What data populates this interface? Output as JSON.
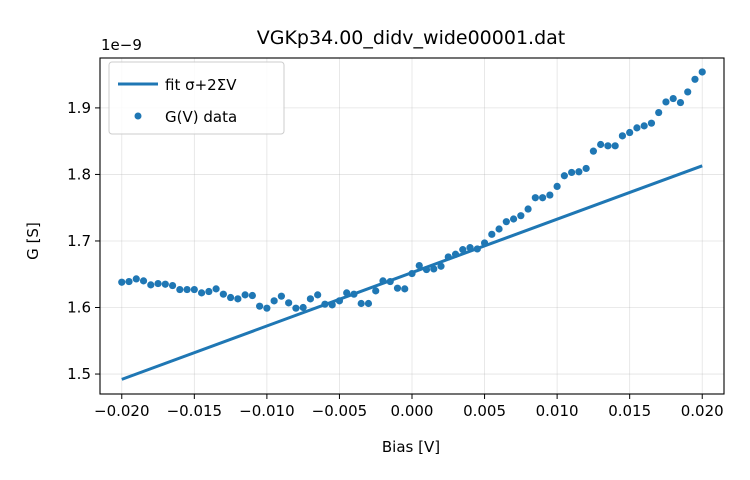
{
  "chart_data": {
    "type": "scatter",
    "title": "VGKp34.00_didv_wide00001.dat",
    "xlabel": "Bias [V]",
    "ylabel": "G [S]",
    "y_offset_label": "1e−9",
    "xlim": [
      -0.0215,
      0.0215
    ],
    "ylim": [
      1.47,
      1.975
    ],
    "grid": true,
    "legend_position": "top-left",
    "x_ticks": [
      -0.02,
      -0.015,
      -0.01,
      -0.005,
      0.0,
      0.005,
      0.01,
      0.015,
      0.02
    ],
    "x_tick_labels": [
      "−0.020",
      "−0.015",
      "−0.010",
      "−0.005",
      "0.000",
      "0.005",
      "0.010",
      "0.015",
      "0.020"
    ],
    "y_ticks": [
      1.5,
      1.6,
      1.7,
      1.8,
      1.9
    ],
    "y_tick_labels": [
      "1.5",
      "1.6",
      "1.7",
      "1.8",
      "1.9"
    ],
    "color": "#1f77b4",
    "series": [
      {
        "name": "fit σ+2ΣV",
        "kind": "line",
        "x": [
          -0.02,
          0.02
        ],
        "y": [
          1.492,
          1.813
        ]
      },
      {
        "name": "G(V) data",
        "kind": "scatter",
        "x": [
          -0.02,
          -0.0195,
          -0.019,
          -0.0185,
          -0.018,
          -0.0175,
          -0.017,
          -0.0165,
          -0.016,
          -0.0155,
          -0.015,
          -0.0145,
          -0.014,
          -0.0135,
          -0.013,
          -0.0125,
          -0.012,
          -0.0115,
          -0.011,
          -0.0105,
          -0.01,
          -0.0095,
          -0.009,
          -0.0085,
          -0.008,
          -0.0075,
          -0.007,
          -0.0065,
          -0.006,
          -0.0055,
          -0.005,
          -0.0045,
          -0.004,
          -0.0035,
          -0.003,
          -0.0025,
          -0.002,
          -0.0015,
          -0.001,
          -0.0005,
          0.0,
          0.0005,
          0.001,
          0.0015,
          0.002,
          0.0025,
          0.003,
          0.0035,
          0.004,
          0.0045,
          0.005,
          0.0055,
          0.006,
          0.0065,
          0.007,
          0.0075,
          0.008,
          0.0085,
          0.009,
          0.0095,
          0.01,
          0.0105,
          0.011,
          0.0115,
          0.012,
          0.0125,
          0.013,
          0.0135,
          0.014,
          0.0145,
          0.015,
          0.0155,
          0.016,
          0.0165,
          0.017,
          0.0175,
          0.018,
          0.0185,
          0.019,
          0.0195,
          0.02
        ],
        "y": [
          1.638,
          1.639,
          1.643,
          1.64,
          1.634,
          1.636,
          1.635,
          1.633,
          1.627,
          1.627,
          1.627,
          1.622,
          1.624,
          1.628,
          1.62,
          1.615,
          1.613,
          1.619,
          1.618,
          1.602,
          1.599,
          1.61,
          1.617,
          1.607,
          1.599,
          1.6,
          1.613,
          1.619,
          1.605,
          1.604,
          1.61,
          1.622,
          1.62,
          1.606,
          1.606,
          1.625,
          1.64,
          1.639,
          1.629,
          1.628,
          1.651,
          1.663,
          1.657,
          1.658,
          1.662,
          1.676,
          1.68,
          1.687,
          1.69,
          1.688,
          1.697,
          1.71,
          1.718,
          1.729,
          1.733,
          1.738,
          1.748,
          1.765,
          1.765,
          1.769,
          1.782,
          1.798,
          1.803,
          1.804,
          1.809,
          1.835,
          1.845,
          1.843,
          1.843,
          1.858,
          1.863,
          1.87,
          1.873,
          1.877,
          1.893,
          1.909,
          1.914,
          1.908,
          1.924,
          1.943,
          1.954
        ]
      }
    ]
  }
}
